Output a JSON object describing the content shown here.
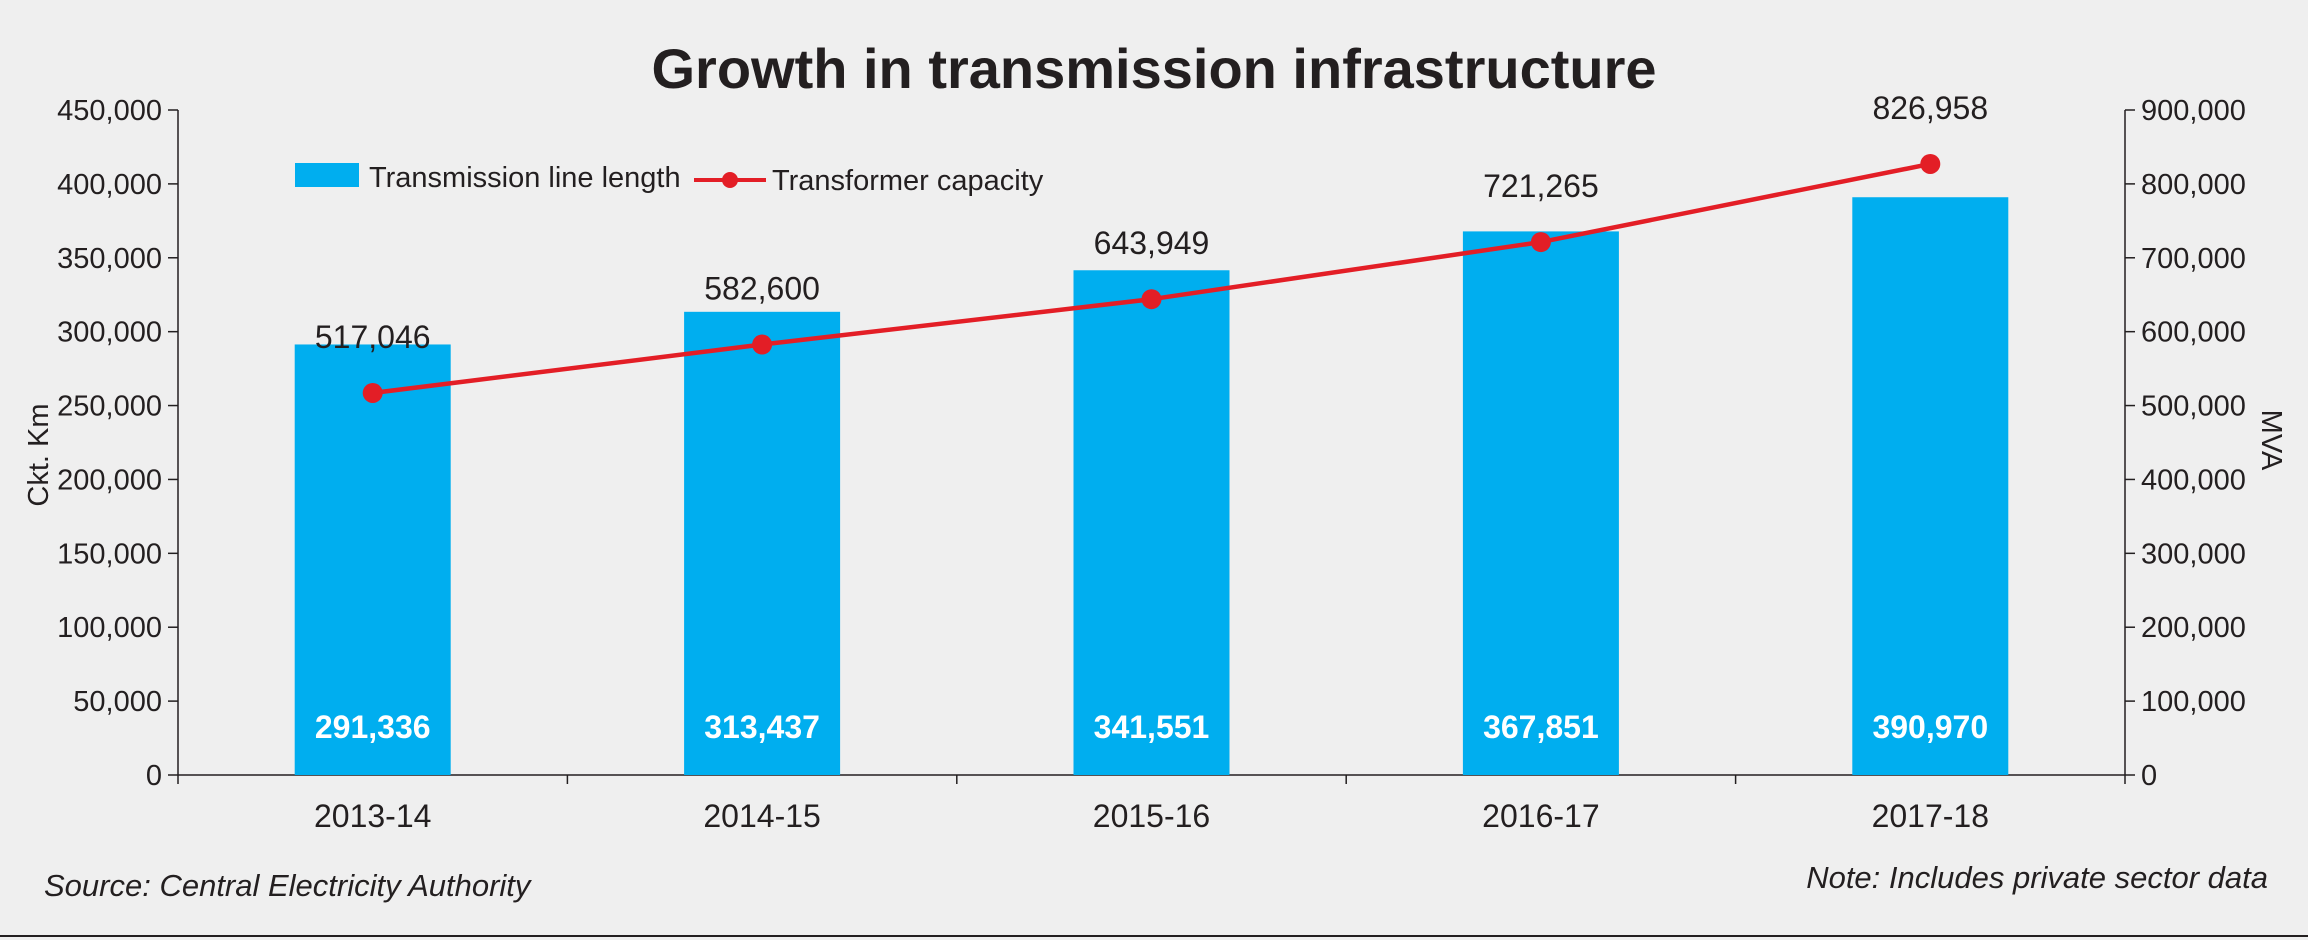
{
  "chart_data": {
    "type": "bar",
    "title": "Growth in transmission infrastructure",
    "categories": [
      "2013-14",
      "2014-15",
      "2015-16",
      "2016-17",
      "2017-18"
    ],
    "series": [
      {
        "name": "Transmission line length",
        "type": "bar",
        "axis": "left",
        "values": [
          291336,
          313437,
          341551,
          367851,
          390970
        ],
        "labels": [
          "291,336",
          "313,437",
          "341,551",
          "367,851",
          "390,970"
        ]
      },
      {
        "name": "Transformer capacity",
        "type": "line",
        "axis": "right",
        "values": [
          517046,
          582600,
          643949,
          721265,
          826958
        ],
        "labels": [
          "517,046",
          "582,600",
          "643,949",
          "721,265",
          "826,958"
        ]
      }
    ],
    "ylabel": "Ckt. Km",
    "y2label": "MVA",
    "xlabel": "",
    "ylim": [
      0,
      450000
    ],
    "y2lim": [
      0,
      900000
    ],
    "yticks": [
      0,
      50000,
      100000,
      150000,
      200000,
      250000,
      300000,
      350000,
      400000,
      450000
    ],
    "yticklabels": [
      "0",
      "50,000",
      "100,000",
      "150,000",
      "200,000",
      "250,000",
      "300,000",
      "350,000",
      "400,000",
      "450,000"
    ],
    "y2ticks": [
      0,
      100000,
      200000,
      300000,
      400000,
      500000,
      600000,
      700000,
      800000,
      900000
    ],
    "y2ticklabels": [
      "0",
      "100,000",
      "200,000",
      "300,000",
      "400,000",
      "500,000",
      "600,000",
      "700,000",
      "800,000",
      "900,000"
    ],
    "legend": "top-left",
    "grid": false,
    "colors": {
      "bar": "#00aeef",
      "line": "#e31e26",
      "axis": "#231f20",
      "background": "#efefef"
    }
  },
  "footer": {
    "source": "Source: Central Electricity Authority",
    "note": "Note: Includes private sector data"
  }
}
